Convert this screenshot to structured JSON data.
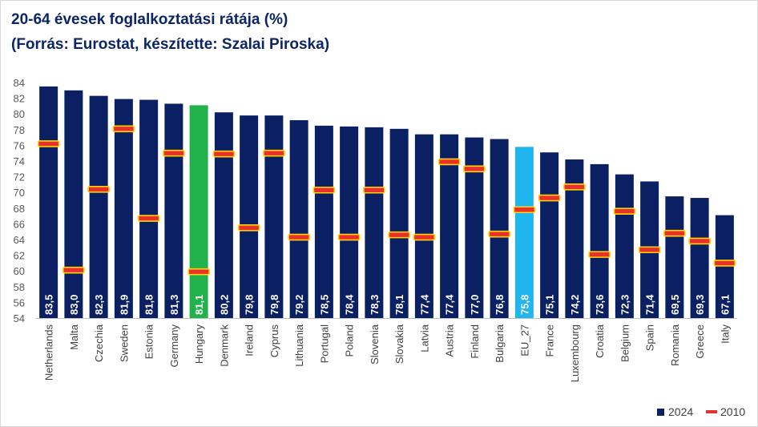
{
  "chart_data": {
    "type": "bar",
    "title": "20-64 évesek foglalkoztatási rátája (%)",
    "subtitle": "(Forrás: Eurostat, készítette: Szalai Piroska)",
    "categories": [
      "Netherlands",
      "Malta",
      "Czechia",
      "Sweden",
      "Estonia",
      "Germany",
      "Hungary",
      "Denmark",
      "Ireland",
      "Cyprus",
      "Lithuania",
      "Portugal",
      "Poland",
      "Slovenia",
      "Slovakia",
      "Latvia",
      "Austria",
      "Finland",
      "Bulgaria",
      "EU_27",
      "France",
      "Luxembourg",
      "Croatia",
      "Belgium",
      "Spain",
      "Romania",
      "Greece",
      "Italy"
    ],
    "series": [
      {
        "name": "2024",
        "values": [
          83.5,
          83.0,
          82.3,
          81.9,
          81.8,
          81.3,
          81.1,
          80.2,
          79.8,
          79.8,
          79.2,
          78.5,
          78.4,
          78.3,
          78.1,
          77.4,
          77.4,
          77.0,
          76.8,
          75.8,
          75.1,
          74.2,
          73.6,
          72.3,
          71.4,
          69.5,
          69.3,
          67.1
        ]
      },
      {
        "name": "2010",
        "values": [
          76.2,
          60.1,
          70.4,
          78.1,
          66.7,
          75.0,
          59.9,
          74.9,
          65.5,
          75.0,
          64.3,
          70.3,
          64.3,
          70.3,
          64.6,
          64.3,
          73.9,
          73.0,
          64.7,
          67.8,
          69.3,
          70.7,
          62.1,
          67.6,
          62.7,
          64.8,
          63.8,
          61.0
        ]
      }
    ],
    "data_labels": [
      "83,5",
      "83,0",
      "82,3",
      "81,9",
      "81,8",
      "81,3",
      "81,1",
      "80,2",
      "79,8",
      "79,8",
      "79,2",
      "78,5",
      "78,4",
      "78,3",
      "78,1",
      "77,4",
      "77,4",
      "77,0",
      "76,8",
      "75,8",
      "75,1",
      "74,2",
      "73,6",
      "72,3",
      "71,4",
      "69,5",
      "69,3",
      "67,1"
    ],
    "highlight": {
      "Hungary": "#21b24b",
      "EU_27": "#1fb5ee"
    },
    "colors": {
      "bar": "#0b1f63",
      "marker_fill": "#e8302c",
      "marker_edge": "#ffd200",
      "title": "#0b2566"
    },
    "ylim": [
      54,
      84
    ],
    "yticks": [
      54,
      56,
      58,
      60,
      62,
      64,
      66,
      68,
      70,
      72,
      74,
      76,
      78,
      80,
      82,
      84
    ],
    "xlabel": "",
    "ylabel": "",
    "legend": [
      "2024",
      "2010"
    ],
    "legend_position": "bottom-right"
  }
}
